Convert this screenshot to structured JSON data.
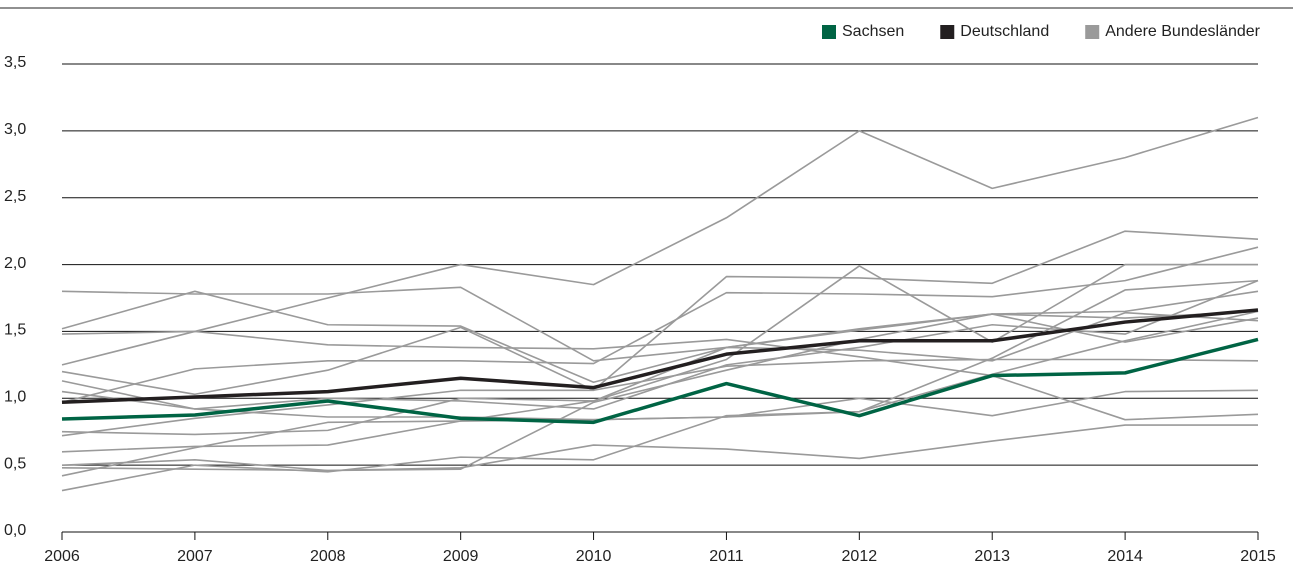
{
  "chart_data": {
    "type": "line",
    "categories": [
      "2006",
      "2007",
      "2008",
      "2009",
      "2010",
      "2011",
      "2012",
      "2013",
      "2014",
      "2015"
    ],
    "series": [
      {
        "name": "Sachsen",
        "color": "#006444",
        "values": [
          0.845,
          0.875,
          0.98,
          0.85,
          0.82,
          1.11,
          0.87,
          1.17,
          1.19,
          1.44
        ]
      },
      {
        "name": "Deutschland",
        "color": "#231f20",
        "values": [
          0.97,
          1.01,
          1.05,
          1.15,
          1.08,
          1.33,
          1.43,
          1.43,
          1.57,
          1.66
        ]
      }
    ],
    "other_series": {
      "name": "Andere Bundesländer",
      "color": "#9a9a9a",
      "lines": [
        [
          1.25,
          1.5,
          1.75,
          2.0,
          1.85,
          2.35,
          3.0,
          2.57,
          2.8,
          3.1
        ],
        [
          1.8,
          1.78,
          1.78,
          1.83,
          1.28,
          1.38,
          1.52,
          1.63,
          1.42,
          1.6
        ],
        [
          1.52,
          1.8,
          1.55,
          1.54,
          1.12,
          1.38,
          1.36,
          1.28,
          1.64,
          1.58
        ],
        [
          1.48,
          1.5,
          1.4,
          1.38,
          1.37,
          1.44,
          1.31,
          1.17,
          0.84,
          0.88
        ],
        [
          1.2,
          1.03,
          1.21,
          1.53,
          1.06,
          1.91,
          1.9,
          1.86,
          2.25,
          2.19
        ],
        [
          0.97,
          1.22,
          1.28,
          1.28,
          1.26,
          1.79,
          1.78,
          1.76,
          1.88,
          2.13
        ],
        [
          0.75,
          0.73,
          0.76,
          1.0,
          0.98,
          1.29,
          1.99,
          1.42,
          2.0,
          2.0
        ],
        [
          1.13,
          0.92,
          1.0,
          0.98,
          0.92,
          1.25,
          1.38,
          1.55,
          1.48,
          1.88
        ],
        [
          1.05,
          0.92,
          0.86,
          0.86,
          0.84,
          0.86,
          0.9,
          1.3,
          1.81,
          1.88
        ],
        [
          0.72,
          0.85,
          0.95,
          1.06,
          1.06,
          1.24,
          1.28,
          1.29,
          1.29,
          1.28
        ],
        [
          0.6,
          0.64,
          0.65,
          0.83,
          0.98,
          1.38,
          1.51,
          1.63,
          1.65,
          1.8
        ],
        [
          0.42,
          0.63,
          0.82,
          0.83,
          0.84,
          0.86,
          1.0,
          0.87,
          1.05,
          1.06
        ],
        [
          0.5,
          0.54,
          0.46,
          0.48,
          0.65,
          0.62,
          0.55,
          0.68,
          0.8,
          0.8
        ],
        [
          0.31,
          0.5,
          0.45,
          0.56,
          0.54,
          0.87,
          0.9,
          1.18,
          1.43,
          1.65
        ],
        [
          0.48,
          0.47,
          0.46,
          0.47,
          0.97,
          1.21,
          1.44,
          1.63,
          1.6,
          1.65
        ]
      ]
    },
    "ylim": [
      0,
      3.5
    ],
    "yticks": [
      {
        "value": 0,
        "label": "0,0"
      },
      {
        "value": 0.5,
        "label": "0,5"
      },
      {
        "value": 1,
        "label": "1,0"
      },
      {
        "value": 1.5,
        "label": "1,5"
      },
      {
        "value": 2,
        "label": "2,0"
      },
      {
        "value": 2.5,
        "label": "2,5"
      },
      {
        "value": 3,
        "label": "3,0"
      },
      {
        "value": 3.5,
        "label": "3,5"
      }
    ],
    "grid": true,
    "legend": "top-right"
  }
}
